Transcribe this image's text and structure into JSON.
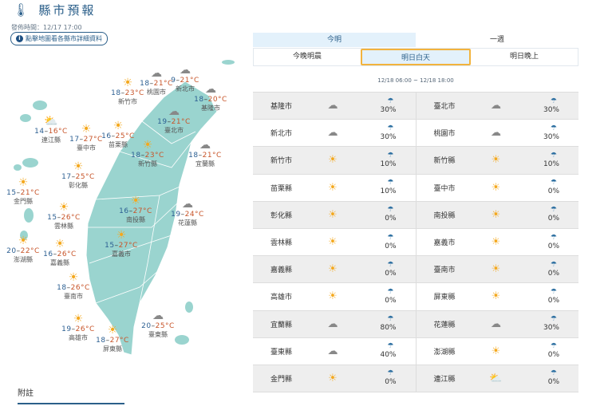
{
  "header": {
    "title": "縣市預報",
    "icon": "thermometer-icon",
    "published": "發佈時間：12/17 17:00",
    "hint": "點擊地圖看各縣市詳細資料"
  },
  "colors": {
    "accent": "#2b5f8a",
    "land": "#9ad4cf",
    "low": "#2c5f92",
    "high": "#c8552a",
    "active_tab_border": "#f2b33d"
  },
  "tabs": {
    "primary": [
      {
        "label": "今明",
        "active": true
      },
      {
        "label": "一週",
        "active": false
      }
    ],
    "secondary": [
      {
        "label": "今晚明晨",
        "active": false
      },
      {
        "label": "明日白天",
        "active": true
      },
      {
        "label": "明日晚上",
        "active": false
      }
    ]
  },
  "range": "12/18 06:00 ~ 12/18 18:00",
  "map": [
    {
      "name": "新竹市",
      "lo": "18",
      "hi": "23",
      "icon": "sunny-icon"
    },
    {
      "name": "桃園市",
      "lo": "18",
      "hi": "21",
      "icon": "cloud-rain-icon"
    },
    {
      "name": "新北市",
      "lo": "9",
      "hi": "21",
      "icon": "cloud-rain-icon"
    },
    {
      "name": "基隆市",
      "lo": "18",
      "hi": "20",
      "icon": "cloud-rain-icon"
    },
    {
      "name": "臺北市",
      "lo": "19",
      "hi": "21",
      "icon": "cloud-rain-icon"
    },
    {
      "name": "連江縣",
      "lo": "14",
      "hi": "16",
      "icon": "partly-cloudy-icon"
    },
    {
      "name": "臺中市",
      "lo": "17",
      "hi": "27",
      "icon": "sunny-icon"
    },
    {
      "name": "苗栗縣",
      "lo": "16",
      "hi": "25",
      "icon": "sunny-icon"
    },
    {
      "name": "新竹縣",
      "lo": "18",
      "hi": "23",
      "icon": "sunny-icon"
    },
    {
      "name": "宜蘭縣",
      "lo": "18",
      "hi": "21",
      "icon": "cloud-rain-icon"
    },
    {
      "name": "彰化縣",
      "lo": "17",
      "hi": "25",
      "icon": "sunny-icon"
    },
    {
      "name": "金門縣",
      "lo": "15",
      "hi": "21",
      "icon": "sunny-icon"
    },
    {
      "name": "南投縣",
      "lo": "16",
      "hi": "27",
      "icon": "sunny-icon"
    },
    {
      "name": "花蓮縣",
      "lo": "19",
      "hi": "24",
      "icon": "cloud-rain-icon"
    },
    {
      "name": "雲林縣",
      "lo": "15",
      "hi": "26",
      "icon": "sunny-icon"
    },
    {
      "name": "澎湖縣",
      "lo": "20",
      "hi": "22",
      "icon": "sunny-icon"
    },
    {
      "name": "嘉義縣",
      "lo": "16",
      "hi": "26",
      "icon": "sunny-icon"
    },
    {
      "name": "嘉義市",
      "lo": "15",
      "hi": "27",
      "icon": "sunny-icon"
    },
    {
      "name": "臺南市",
      "lo": "18",
      "hi": "26",
      "icon": "sunny-icon"
    },
    {
      "name": "高雄市",
      "lo": "19",
      "hi": "26",
      "icon": "sunny-icon"
    },
    {
      "name": "屏東縣",
      "lo": "18",
      "hi": "27",
      "icon": "sunny-icon"
    },
    {
      "name": "臺東縣",
      "lo": "20",
      "hi": "25",
      "icon": "cloud-rain-icon"
    }
  ],
  "unit": "°C",
  "dash": "–",
  "table": [
    [
      {
        "name": "基隆市",
        "icon": "cloud-rain-icon",
        "pop": "30%"
      },
      {
        "name": "臺北市",
        "icon": "cloud-rain-icon",
        "pop": "30%"
      }
    ],
    [
      {
        "name": "新北市",
        "icon": "cloud-rain-icon",
        "pop": "30%"
      },
      {
        "name": "桃園市",
        "icon": "cloud-rain-icon",
        "pop": "30%"
      }
    ],
    [
      {
        "name": "新竹市",
        "icon": "sunny-icon",
        "pop": "10%"
      },
      {
        "name": "新竹縣",
        "icon": "sunny-icon",
        "pop": "10%"
      }
    ],
    [
      {
        "name": "苗栗縣",
        "icon": "sunny-icon",
        "pop": "10%"
      },
      {
        "name": "臺中市",
        "icon": "sunny-icon",
        "pop": "0%"
      }
    ],
    [
      {
        "name": "彰化縣",
        "icon": "sunny-icon",
        "pop": "0%"
      },
      {
        "name": "南投縣",
        "icon": "sunny-icon",
        "pop": "0%"
      }
    ],
    [
      {
        "name": "雲林縣",
        "icon": "sunny-icon",
        "pop": "0%"
      },
      {
        "name": "嘉義市",
        "icon": "sunny-icon",
        "pop": "0%"
      }
    ],
    [
      {
        "name": "嘉義縣",
        "icon": "sunny-icon",
        "pop": "0%"
      },
      {
        "name": "臺南市",
        "icon": "sunny-icon",
        "pop": "0%"
      }
    ],
    [
      {
        "name": "高雄市",
        "icon": "sunny-icon",
        "pop": "0%"
      },
      {
        "name": "屏東縣",
        "icon": "sunny-icon",
        "pop": "0%"
      }
    ],
    [
      {
        "name": "宜蘭縣",
        "icon": "cloud-rain-icon",
        "pop": "80%"
      },
      {
        "name": "花蓮縣",
        "icon": "cloud-rain-icon",
        "pop": "30%"
      }
    ],
    [
      {
        "name": "臺東縣",
        "icon": "cloud-rain-icon",
        "pop": "40%"
      },
      {
        "name": "澎湖縣",
        "icon": "sunny-icon",
        "pop": "0%"
      }
    ],
    [
      {
        "name": "金門縣",
        "icon": "sunny-icon",
        "pop": "0%"
      },
      {
        "name": "連江縣",
        "icon": "partly-cloudy-icon",
        "pop": "0%"
      }
    ]
  ],
  "note": "附註"
}
